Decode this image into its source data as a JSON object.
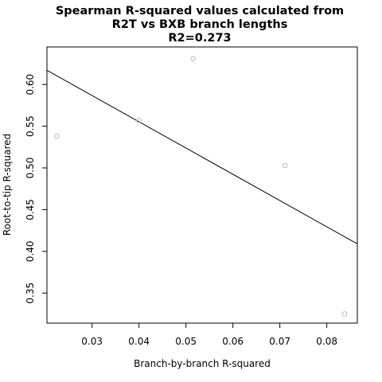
{
  "chart_data": {
    "type": "scatter",
    "title_lines": [
      "Spearman R-squared values calculated from",
      "R2T vs BXB branch lengths",
      "R2=0.273"
    ],
    "xlabel": "Branch-by-branch R-squared",
    "ylabel": "Root-to-tip R-squared",
    "xlim": [
      0.0204,
      0.0865
    ],
    "ylim": [
      0.314,
      0.645
    ],
    "x_ticks": [
      0.03,
      0.04,
      0.05,
      0.06,
      0.07,
      0.08
    ],
    "x_tick_labels": [
      "0.03",
      "0.04",
      "0.05",
      "0.06",
      "0.07",
      "0.08"
    ],
    "y_ticks": [
      0.35,
      0.4,
      0.45,
      0.5,
      0.55,
      0.6
    ],
    "y_tick_labels": [
      "0.35",
      "0.40",
      "0.45",
      "0.50",
      "0.55",
      "0.60"
    ],
    "points": [
      {
        "x": 0.0225,
        "y": 0.538
      },
      {
        "x": 0.04,
        "y": 0.557
      },
      {
        "x": 0.0515,
        "y": 0.631
      },
      {
        "x": 0.0711,
        "y": 0.503
      },
      {
        "x": 0.0838,
        "y": 0.325
      }
    ],
    "regression_line": {
      "x": [
        0.0204,
        0.0865
      ],
      "y": [
        0.617,
        0.409
      ]
    },
    "grid": false,
    "point_color": "#bbbbbb",
    "line_color": "#000000"
  }
}
